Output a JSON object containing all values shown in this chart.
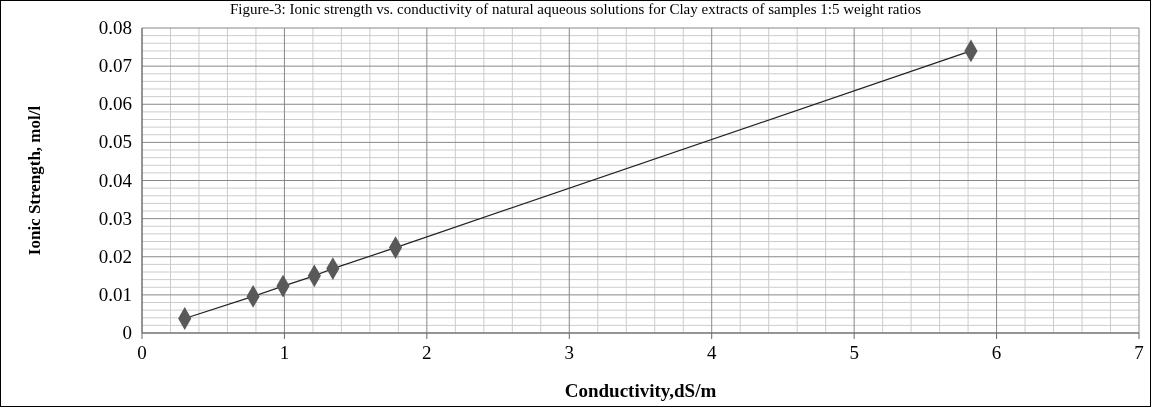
{
  "chart_data": {
    "type": "line",
    "title": "Figure-3: Ionic strength vs. conductivity of natural aqueous solutions for Clay extracts of samples 1:5 weight ratios",
    "xlabel": "Conductivity,dS/m",
    "ylabel": "Ionic Strength, mol/l",
    "x": [
      0.3,
      0.78,
      0.99,
      1.21,
      1.34,
      1.78,
      5.82
    ],
    "series": [
      {
        "color": "#595959",
        "values": [
          0.0038,
          0.0096,
          0.0123,
          0.015,
          0.0169,
          0.0224,
          0.074
        ]
      }
    ],
    "marker": "diamond",
    "line_style": "solid",
    "grid": true,
    "xlim": [
      0,
      7
    ],
    "xticks": [
      0,
      1,
      2,
      3,
      4,
      5,
      6,
      7
    ],
    "ylim": [
      0,
      0.08
    ],
    "yticks": [
      {
        "value": 0,
        "label": "0"
      },
      0.01,
      0.02,
      0.03,
      0.04,
      0.05,
      0.06,
      0.07,
      0.08
    ]
  }
}
